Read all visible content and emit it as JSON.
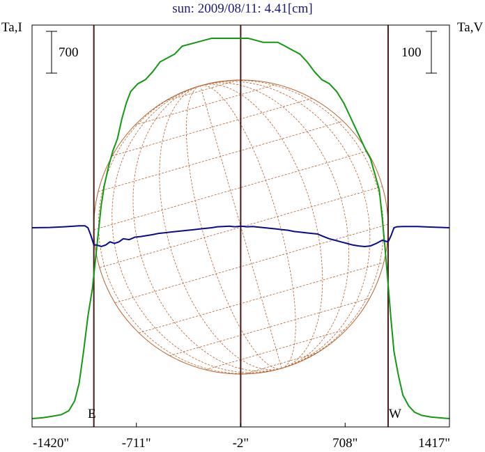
{
  "title": "sun: 2009/08/11: 4.41[cm]",
  "left_axis_label": "Ta,I",
  "right_axis_label": "Ta,V",
  "left_scale_label": "700",
  "right_scale_label": "100",
  "east_label": "E",
  "west_label": "W",
  "colors": {
    "intensity": "#119911",
    "polarization": "#0a0a8c",
    "grid": "#b5602a",
    "frame": "#000000",
    "limb_lines": "#4a1a1a",
    "title": "#1a1a78"
  },
  "chart_data": {
    "type": "line",
    "title": "sun: 2009/08/11: 4.41[cm]",
    "x_tick_labels": [
      "-1420\"",
      "-711\"",
      "-2\"",
      "708\"",
      "1417\""
    ],
    "x_ticks": [
      -1420,
      -711,
      -2,
      708,
      1417
    ],
    "xlim": [
      -1420,
      1417
    ],
    "vertical_markers": [
      -1000,
      -2,
      1000
    ],
    "series": [
      {
        "name": "Ta,I",
        "x": [
          -1420,
          -1350,
          -1280,
          -1220,
          -1170,
          -1130,
          -1100,
          -1070,
          -1040,
          -1010,
          -990,
          -970,
          -950,
          -930,
          -900,
          -870,
          -840,
          -810,
          -780,
          -750,
          -700,
          -650,
          -600,
          -550,
          -500,
          -450,
          -400,
          -350,
          -300,
          -250,
          -200,
          -150,
          -100,
          -50,
          0,
          50,
          100,
          150,
          200,
          250,
          300,
          350,
          400,
          450,
          500,
          550,
          600,
          650,
          700,
          750,
          800,
          850,
          880,
          910,
          940,
          960,
          980,
          1000,
          1020,
          1040,
          1070,
          1100,
          1140,
          1180,
          1230,
          1290,
          1350,
          1417
        ],
        "y": [
          0,
          2,
          6,
          10,
          20,
          45,
          90,
          170,
          260,
          330,
          400,
          470,
          540,
          590,
          640,
          680,
          710,
          760,
          800,
          830,
          850,
          860,
          880,
          905,
          915,
          925,
          945,
          950,
          955,
          960,
          965,
          965,
          965,
          965,
          965,
          965,
          960,
          955,
          955,
          955,
          945,
          935,
          925,
          905,
          880,
          860,
          850,
          830,
          800,
          760,
          720,
          680,
          660,
          620,
          580,
          510,
          430,
          340,
          250,
          170,
          110,
          60,
          32,
          16,
          8,
          4,
          2,
          0
        ]
      },
      {
        "name": "Ta,V",
        "x": [
          -1420,
          -1300,
          -1200,
          -1100,
          -1060,
          -1040,
          -1020,
          -1000,
          -980,
          -950,
          -920,
          -890,
          -860,
          -830,
          -800,
          -760,
          -720,
          -680,
          -640,
          -600,
          -560,
          -520,
          -480,
          -440,
          -400,
          -360,
          -320,
          -280,
          -240,
          -200,
          -160,
          -120,
          -80,
          -40,
          0,
          40,
          80,
          120,
          160,
          200,
          240,
          280,
          320,
          360,
          400,
          440,
          480,
          520,
          560,
          600,
          640,
          680,
          720,
          760,
          800,
          840,
          880,
          920,
          960,
          1000,
          1020,
          1040,
          1060,
          1100,
          1200,
          1300,
          1417
        ],
        "y": [
          0,
          1,
          3,
          6,
          6,
          0,
          -25,
          -55,
          -55,
          -60,
          -55,
          -45,
          -50,
          -45,
          -35,
          -38,
          -30,
          -28,
          -25,
          -22,
          -18,
          -16,
          -14,
          -12,
          -10,
          -8,
          -6,
          -4,
          -2,
          0,
          3,
          4,
          5,
          3,
          5,
          3,
          4,
          2,
          0,
          -2,
          -4,
          -6,
          -8,
          -12,
          -14,
          -16,
          -18,
          -20,
          -28,
          -35,
          -40,
          -45,
          -50,
          -55,
          -58,
          -60,
          -58,
          -50,
          -40,
          -45,
          -25,
          0,
          3,
          4,
          4,
          2,
          0
        ]
      }
    ],
    "left_scale_bar": 700,
    "right_scale_bar": 100,
    "grid": false,
    "overlay": "solar disk with latitude/longitude grid"
  }
}
